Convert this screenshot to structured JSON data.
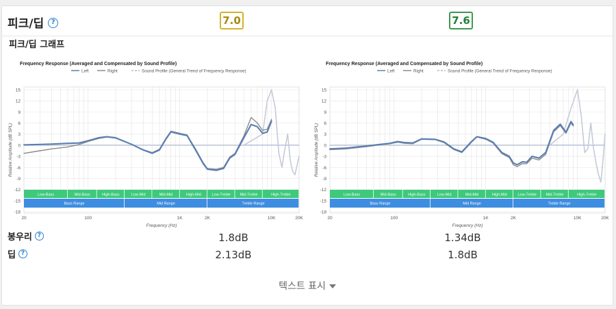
{
  "section": {
    "title": "피크/딥",
    "help_icon": "question-circle-icon",
    "scores": [
      "7.0",
      "7.6"
    ],
    "score_colors": [
      "#d1b42a",
      "#3a9a4a"
    ],
    "subtitle": "피크/딥 그래프"
  },
  "graphs": [
    {
      "chart_data": {
        "type": "line",
        "title": "Frequency Response (Averaged and Compensated by Sound Profile)",
        "xlabel": "Frequency (Hz)",
        "ylabel": "Relative Amplitude (dB SPL)",
        "xscale": "log",
        "xlim": [
          20,
          20000
        ],
        "ylim": [
          -18,
          18
        ],
        "xticks": [
          "20",
          "100",
          "1K",
          "2K",
          "10K",
          "20K"
        ],
        "yticks": [
          "15",
          "12",
          "9",
          "6",
          "3",
          "0",
          "-3",
          "-6",
          "-9",
          "-12",
          "-15",
          "-18"
        ],
        "legend": [
          "Left",
          "Right",
          "Sound Profile (General Trend of Frequency Response)"
        ],
        "legend_position": "top",
        "grid": true,
        "bands_top": [
          "Low-Bass",
          "Mid-Bass",
          "High-Bass",
          "Low-Mid",
          "Mid-Mid",
          "High-Mid",
          "Low-Treble",
          "Mid-Treble",
          "High-Treble"
        ],
        "bands_bottom": [
          "Bass Range",
          "Mid Range",
          "Treble Range"
        ],
        "series": [
          {
            "name": "Left",
            "x": [
              20,
              30,
              40,
              60,
              80,
              100,
              130,
              160,
              200,
              300,
              400,
              500,
              600,
              700,
              800,
              1000,
              1200,
              1500,
              1800,
              2000,
              2500,
              3000,
              3500,
              4000,
              5000,
              6000,
              7000,
              8000,
              9000,
              10000
            ],
            "y": [
              0.1,
              0.2,
              0.3,
              0.5,
              0.6,
              1.2,
              2.0,
              2.3,
              2.0,
              0.2,
              -1.3,
              -2.2,
              -1.3,
              1.5,
              3.6,
              3.0,
              2.6,
              -1.5,
              -5.0,
              -6.5,
              -6.8,
              -6.3,
              -3.5,
              -2.5,
              2.0,
              5.6,
              5.0,
              3.2,
              3.6,
              6.5
            ]
          },
          {
            "name": "Right",
            "x": [
              20,
              30,
              40,
              60,
              80,
              100,
              130,
              160,
              200,
              300,
              400,
              500,
              600,
              700,
              800,
              1000,
              1200,
              1500,
              1800,
              2000,
              2500,
              3000,
              3500,
              4000,
              5000,
              6000,
              7000,
              8000,
              9000,
              10000
            ],
            "y": [
              -2.2,
              -1.5,
              -1.0,
              -0.5,
              0.2,
              1.0,
              1.8,
              2.2,
              1.9,
              0.2,
              -1.2,
              -2.0,
              -1.1,
              1.7,
              3.8,
              3.2,
              2.8,
              -1.2,
              -4.7,
              -6.3,
              -6.5,
              -6.0,
              -3.2,
              -2.2,
              2.5,
              7.5,
              6.0,
              4.0,
              4.3,
              7.0
            ]
          },
          {
            "name": "Sound Profile (General Trend of Frequency Response)",
            "x": [
              20,
              100,
              1000,
              5000,
              8000,
              9000,
              10000,
              11000,
              12000,
              13000,
              14000,
              15000,
              16000,
              17000,
              18000,
              20000
            ],
            "y": [
              0,
              0,
              0,
              0,
              3,
              12,
              15,
              10,
              -2,
              -6,
              -1,
              3,
              -4,
              -7,
              -8,
              -3
            ]
          }
        ]
      }
    },
    {
      "chart_data": {
        "type": "line",
        "title": "Frequency Response (Averaged and Compensated by Sound Profile)",
        "xlabel": "Frequency (Hz)",
        "ylabel": "Relative Amplitude (dB SPL)",
        "xscale": "log",
        "xlim": [
          20,
          20000
        ],
        "ylim": [
          -18,
          18
        ],
        "xticks": [
          "20",
          "100",
          "1K",
          "2K",
          "10K",
          "20K"
        ],
        "yticks": [
          "15",
          "12",
          "9",
          "6",
          "3",
          "0",
          "-3",
          "-6",
          "-9",
          "-12",
          "-15",
          "-18"
        ],
        "legend": [
          "Left",
          "Right",
          "Sound Profile (General Trend of Frequency Response)"
        ],
        "legend_position": "top",
        "grid": true,
        "bands_top": [
          "Low-Bass",
          "Mid-Bass",
          "High-Bass",
          "Low-Mid",
          "Mid-Mid",
          "High-Mid",
          "Low-Treble",
          "Mid-Treble",
          "High-Treble"
        ],
        "bands_bottom": [
          "Bass Range",
          "Mid Range",
          "Treble Range"
        ],
        "series": [
          {
            "name": "Left",
            "x": [
              20,
              30,
              50,
              70,
              90,
              110,
              130,
              160,
              200,
              280,
              350,
              450,
              550,
              700,
              800,
              1000,
              1200,
              1500,
              1800,
              2000,
              2200,
              2500,
              2800,
              3200,
              3800,
              4500,
              5500,
              6500,
              7500,
              8500,
              9000
            ],
            "y": [
              -1.0,
              -0.8,
              -0.2,
              0.2,
              0.5,
              1.0,
              0.7,
              0.6,
              1.7,
              1.6,
              0.9,
              -1.0,
              -1.8,
              1.0,
              2.3,
              1.8,
              0.8,
              -2.0,
              -3.0,
              -4.8,
              -5.3,
              -4.5,
              -4.6,
              -3.0,
              -3.5,
              -2.0,
              4.0,
              5.7,
              3.5,
              6.4,
              5.5
            ]
          },
          {
            "name": "Right",
            "x": [
              20,
              30,
              50,
              70,
              90,
              110,
              130,
              160,
              200,
              280,
              350,
              450,
              550,
              700,
              800,
              1000,
              1200,
              1500,
              1800,
              2000,
              2200,
              2500,
              2800,
              3200,
              3800,
              4500,
              5500,
              6500,
              7500,
              8500,
              9000
            ],
            "y": [
              -1.2,
              -1.0,
              -0.4,
              0.1,
              0.4,
              0.8,
              0.5,
              0.4,
              1.6,
              1.5,
              0.7,
              -1.2,
              -2.0,
              0.8,
              2.2,
              1.6,
              0.6,
              -2.3,
              -3.3,
              -5.3,
              -5.8,
              -5.0,
              -5.0,
              -3.5,
              -4.0,
              -2.5,
              3.6,
              5.3,
              3.2,
              6.0,
              5.2
            ]
          },
          {
            "name": "Sound Profile (General Trend of Frequency Response)",
            "x": [
              20,
              100,
              1000,
              5000,
              7000,
              8500,
              10000,
              11000,
              12000,
              13000,
              14000,
              15000,
              16000,
              17000,
              18000,
              19000,
              20000
            ],
            "y": [
              0,
              0,
              0,
              0,
              3,
              10,
              15,
              8,
              -2,
              -1,
              6,
              -1,
              -5,
              -8,
              -10,
              -4,
              3
            ]
          }
        ]
      }
    }
  ],
  "rows": [
    {
      "label": "봉우리",
      "values": [
        "1.8dB",
        "1.34dB"
      ]
    },
    {
      "label": "딥",
      "values": [
        "2.13dB",
        "1.8dB"
      ]
    }
  ],
  "show_text": "텍스트 표시"
}
